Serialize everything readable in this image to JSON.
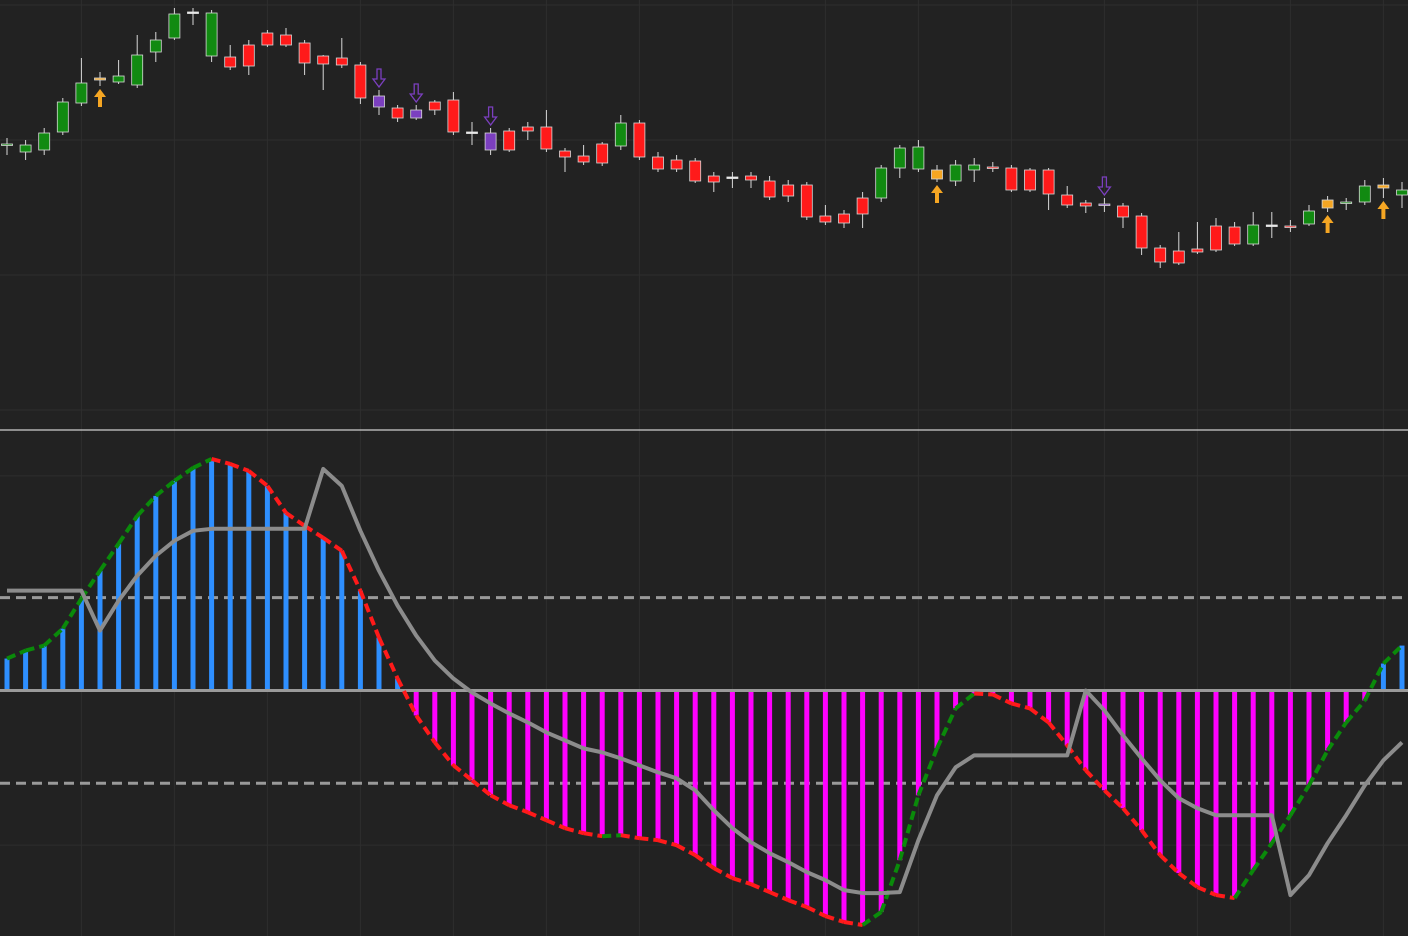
{
  "chart_data": [
    {
      "type": "candlestick",
      "ylim": [
        0,
        430
      ],
      "ygrid": [
        425,
        290,
        155,
        20
      ],
      "up_color": "#118a11",
      "down_color": "#ff1a1a",
      "flat_color": "#e8e8e8",
      "signals": {
        "up": [
          5,
          50,
          71,
          74
        ],
        "down": [
          20,
          22,
          26,
          59
        ],
        "up_color": "#f5a623",
        "down_color": "#7b3fbf"
      },
      "open": [
        285,
        278,
        280,
        298,
        327,
        350,
        348,
        345,
        378,
        392,
        418,
        374,
        373,
        385,
        397,
        395,
        387,
        374,
        372,
        365,
        334,
        322,
        320,
        328,
        330,
        298,
        297,
        299,
        303,
        303,
        279,
        274,
        286,
        284,
        307,
        273,
        270,
        269,
        254,
        253,
        254,
        249,
        245,
        245,
        214,
        216,
        232,
        232,
        262,
        261,
        260,
        249,
        260,
        263,
        262,
        260,
        260,
        235,
        227,
        226,
        224,
        214,
        182,
        179,
        181,
        204,
        203,
        186,
        205,
        204,
        206,
        230,
        227,
        228,
        245,
        235
      ],
      "close": [
        286,
        285,
        297,
        328,
        347,
        352,
        354,
        375,
        390,
        416,
        418,
        417,
        363,
        364,
        385,
        385,
        367,
        366,
        365,
        332,
        323,
        312,
        312,
        320,
        298,
        298,
        280,
        280,
        299,
        281,
        273,
        268,
        267,
        307,
        273,
        261,
        261,
        249,
        248,
        253,
        250,
        233,
        234,
        213,
        208,
        207,
        216,
        262,
        282,
        283,
        251,
        265,
        265,
        262,
        240,
        240,
        236,
        225,
        224,
        226,
        213,
        182,
        168,
        167,
        178,
        180,
        186,
        205,
        205,
        203,
        219,
        222,
        228,
        244,
        242,
        240
      ],
      "high": [
        292,
        290,
        302,
        332,
        372,
        358,
        370,
        395,
        398,
        422,
        422,
        420,
        385,
        390,
        400,
        402,
        390,
        375,
        392,
        368,
        340,
        325,
        325,
        330,
        338,
        308,
        302,
        302,
        308,
        320,
        282,
        285,
        288,
        315,
        310,
        278,
        275,
        272,
        258,
        258,
        258,
        254,
        250,
        248,
        225,
        220,
        238,
        265,
        285,
        290,
        265,
        270,
        272,
        268,
        265,
        262,
        262,
        244,
        230,
        232,
        227,
        217,
        185,
        198,
        208,
        212,
        208,
        218,
        218,
        210,
        225,
        234,
        232,
        250,
        252,
        248
      ],
      "low": [
        275,
        270,
        275,
        295,
        324,
        344,
        346,
        342,
        368,
        390,
        405,
        368,
        360,
        355,
        383,
        383,
        355,
        340,
        362,
        326,
        315,
        308,
        310,
        315,
        295,
        285,
        275,
        278,
        290,
        278,
        258,
        265,
        264,
        280,
        270,
        258,
        258,
        247,
        238,
        242,
        242,
        230,
        228,
        210,
        205,
        202,
        202,
        228,
        252,
        258,
        248,
        244,
        248,
        258,
        238,
        238,
        220,
        222,
        217,
        218,
        202,
        175,
        162,
        165,
        176,
        178,
        184,
        184,
        192,
        198,
        204,
        218,
        220,
        225,
        232,
        222
      ]
    },
    {
      "type": "bar",
      "ylim": [
        -246,
        260
      ],
      "ygrid": [
        215,
        -155
      ],
      "levels": [
        93,
        -93
      ],
      "series": [
        {
          "color": "#2e8fff",
          "negative_color": "#ff00ff",
          "rising_color": "#0a8a0a",
          "falling_color": "#ff1a1a",
          "values": [
            32,
            40,
            45,
            62,
            92,
            120,
            147,
            175,
            195,
            210,
            223,
            232,
            227,
            220,
            205,
            178,
            165,
            153,
            140,
            100,
            53,
            12,
            -25,
            -52,
            -75,
            -90,
            -105,
            -115,
            -122,
            -130,
            -138,
            -143,
            -146,
            -145,
            -148,
            -150,
            -155,
            -165,
            -178,
            -188,
            -194,
            -202,
            -210,
            -217,
            -226,
            -232,
            -235,
            -222,
            -170,
            -105,
            -58,
            -18,
            -3,
            -4,
            -13,
            -18,
            -32,
            -55,
            -80,
            -100,
            -118,
            -140,
            -165,
            -183,
            -197,
            -205,
            -208,
            -180,
            -153,
            -125,
            -95,
            -60,
            -32,
            -10,
            27,
            45
          ]
        },
        {
          "type": "line",
          "color": "#8c8c8c",
          "values": [
            100,
            100,
            100,
            100,
            100,
            60,
            90,
            115,
            135,
            150,
            160,
            162,
            162,
            162,
            162,
            162,
            162,
            222,
            205,
            160,
            120,
            85,
            55,
            30,
            12,
            -2,
            -13,
            -23,
            -32,
            -42,
            -50,
            -58,
            -62,
            -68,
            -75,
            -82,
            -88,
            -100,
            -120,
            -138,
            -152,
            -163,
            -172,
            -182,
            -190,
            -200,
            -203,
            -203,
            -202,
            -150,
            -105,
            -77,
            -65,
            -65,
            -65,
            -65,
            -65,
            -65,
            0,
            -20,
            -45,
            -68,
            -90,
            -108,
            -118,
            -125,
            -125,
            -125,
            -125,
            -205,
            -185,
            -153,
            -125,
            -95,
            -70,
            -52
          ]
        }
      ]
    }
  ]
}
